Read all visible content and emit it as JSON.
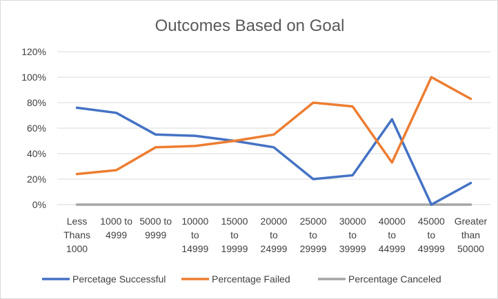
{
  "chart_data": {
    "type": "line",
    "title": "Outcomes Based on Goal",
    "xlabel": "",
    "ylabel": "",
    "ylim": [
      0,
      1.2
    ],
    "yticks": [
      0,
      0.2,
      0.4,
      0.6,
      0.8,
      1.0,
      1.2
    ],
    "ytick_labels": [
      "0%",
      "20%",
      "40%",
      "60%",
      "80%",
      "100%",
      "120%"
    ],
    "grid": true,
    "legend_position": "bottom",
    "categories": [
      "Less Thans 1000",
      "1000 to 4999",
      "5000 to 9999",
      "10000 to 14999",
      "15000 to 19999",
      "20000 to 24999",
      "25000 to 29999",
      "30000 to 39999",
      "40000 to 44999",
      "45000 to 49999",
      "Greater than 50000"
    ],
    "category_lines": [
      [
        "Less",
        "Thans",
        "1000"
      ],
      [
        "1000 to",
        "4999"
      ],
      [
        "5000 to",
        "9999"
      ],
      [
        "10000",
        "to",
        "14999"
      ],
      [
        "15000",
        "to",
        "19999"
      ],
      [
        "20000",
        "to",
        "24999"
      ],
      [
        "25000",
        "to",
        "29999"
      ],
      [
        "30000",
        "to",
        "39999"
      ],
      [
        "40000",
        "to",
        "44999"
      ],
      [
        "45000",
        "to",
        "49999"
      ],
      [
        "Greater",
        "than",
        "50000"
      ]
    ],
    "series": [
      {
        "name": "Percetage Successful",
        "color": "#4472c4",
        "values": [
          0.76,
          0.72,
          0.55,
          0.54,
          0.5,
          0.45,
          0.2,
          0.23,
          0.67,
          0.0,
          0.17
        ]
      },
      {
        "name": "Percentage Failed",
        "color": "#ed7d31",
        "values": [
          0.24,
          0.27,
          0.45,
          0.46,
          0.5,
          0.55,
          0.8,
          0.77,
          0.33,
          1.0,
          0.83
        ]
      },
      {
        "name": "Percentage Canceled",
        "color": "#a5a5a5",
        "values": [
          0,
          0,
          0,
          0,
          0,
          0,
          0,
          0,
          0,
          0,
          0
        ]
      }
    ]
  }
}
